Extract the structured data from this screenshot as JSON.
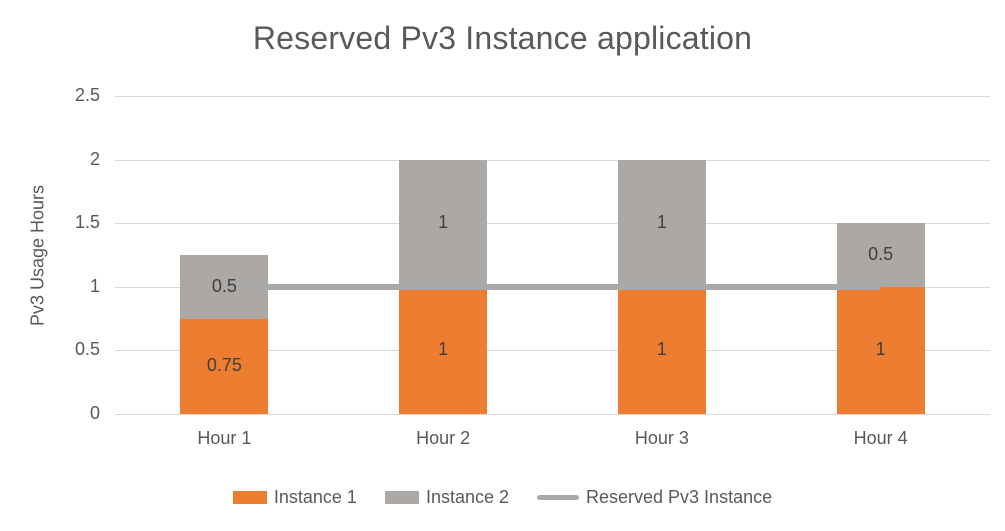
{
  "title": "Reserved Pv3 Instance application",
  "chart_data": {
    "type": "bar",
    "stacked": true,
    "title": "Reserved Pv3 Instance application",
    "xlabel": "",
    "ylabel": "Pv3 Usage Hours",
    "categories": [
      "Hour 1",
      "Hour 2",
      "Hour 3",
      "Hour 4"
    ],
    "series": [
      {
        "name": "Instance 1",
        "type": "bar",
        "color": "#ED7D31",
        "values": [
          0.75,
          1,
          1,
          1
        ]
      },
      {
        "name": "Instance 2",
        "type": "bar",
        "color": "#ABA8A6",
        "values": [
          0.5,
          1,
          1,
          0.5
        ]
      },
      {
        "name": "Reserved Pv3 Instance",
        "type": "line",
        "color": "#A9A9A9",
        "values": [
          1,
          1,
          1,
          1
        ]
      }
    ],
    "data_labels": true,
    "ylim": [
      0,
      2.5
    ],
    "yticks": [
      0,
      0.5,
      1,
      1.5,
      2,
      2.5
    ],
    "grid": true,
    "legend_position": "bottom"
  },
  "colors": {
    "instance1": "#ED7D31",
    "instance2": "#ABA8A6",
    "reserved_line": "#A9A9A9",
    "gridline": "#D9D9D9",
    "axis_text": "#595959",
    "data_label_text": "#404040",
    "title_text": "#595959",
    "background": "#FFFFFF"
  }
}
